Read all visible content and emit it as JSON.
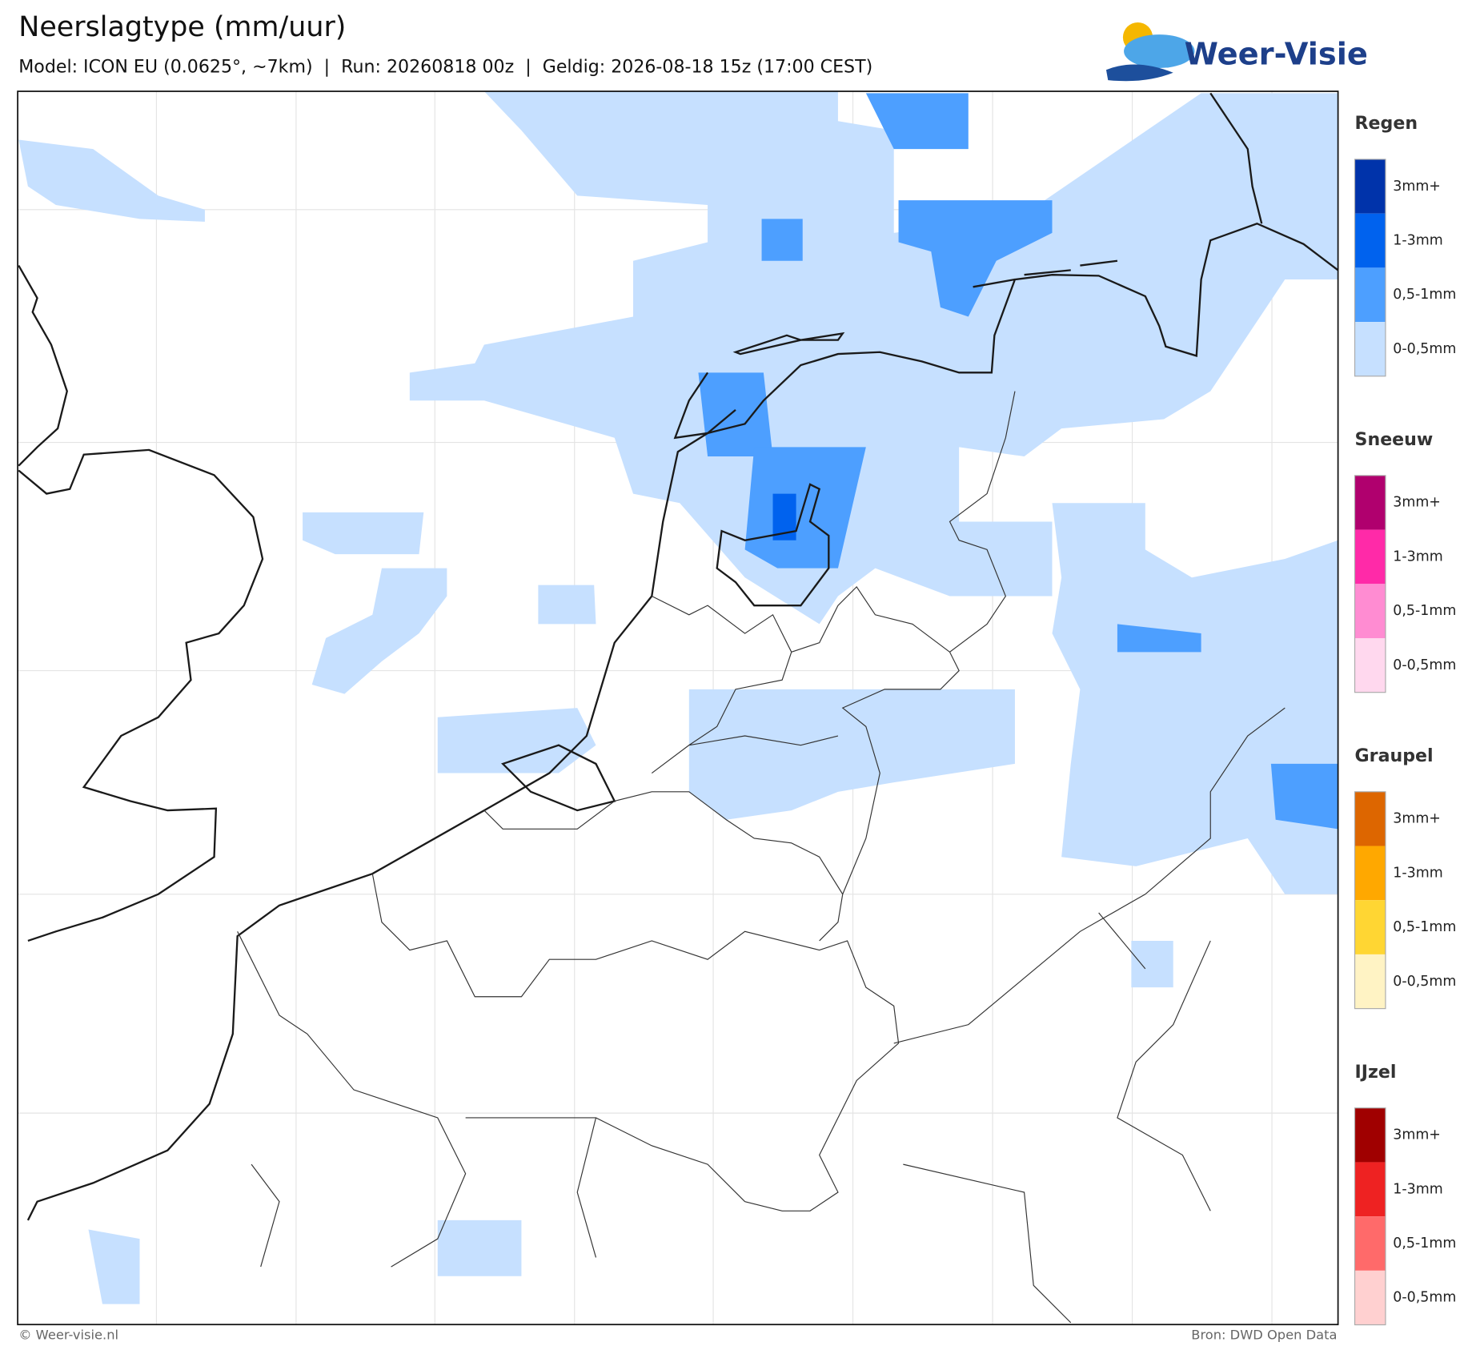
{
  "header": {
    "title": "Neerslagtype (mm/uur)",
    "subtitle": "Model: ICON EU (0.0625°, ~7km)  |  Run: 20260818 00z  |  Geldig: 2026-08-18 15z (17:00 CEST)"
  },
  "logo": {
    "text": "Weer-Visie"
  },
  "legend": [
    {
      "title": "Regen",
      "items": [
        {
          "label": "3mm+",
          "color": "#0033aa"
        },
        {
          "label": "1-3mm",
          "color": "#0062ee"
        },
        {
          "label": "0,5-1mm",
          "color": "#4d9fff"
        },
        {
          "label": "0-0,5mm",
          "color": "#c6e0ff"
        }
      ]
    },
    {
      "title": "Sneeuw",
      "items": [
        {
          "label": "3mm+",
          "color": "#b0006e"
        },
        {
          "label": "1-3mm",
          "color": "#ff2aa8"
        },
        {
          "label": "0,5-1mm",
          "color": "#ff8cd2"
        },
        {
          "label": "0-0,5mm",
          "color": "#ffd8ee"
        }
      ]
    },
    {
      "title": "Graupel",
      "items": [
        {
          "label": "3mm+",
          "color": "#dd6600"
        },
        {
          "label": "1-3mm",
          "color": "#ffa800"
        },
        {
          "label": "0,5-1mm",
          "color": "#ffd633"
        },
        {
          "label": "0-0,5mm",
          "color": "#fff3c4"
        }
      ]
    },
    {
      "title": "IJzel",
      "items": [
        {
          "label": "3mm+",
          "color": "#a00000"
        },
        {
          "label": "1-3mm",
          "color": "#ee2222"
        },
        {
          "label": "0,5-1mm",
          "color": "#ff6a6a"
        },
        {
          "label": "0-0,5mm",
          "color": "#ffd0d0"
        }
      ]
    }
  ],
  "footer": {
    "left": "© Weer-visie.nl",
    "right": "Bron: DWD Open Data"
  }
}
